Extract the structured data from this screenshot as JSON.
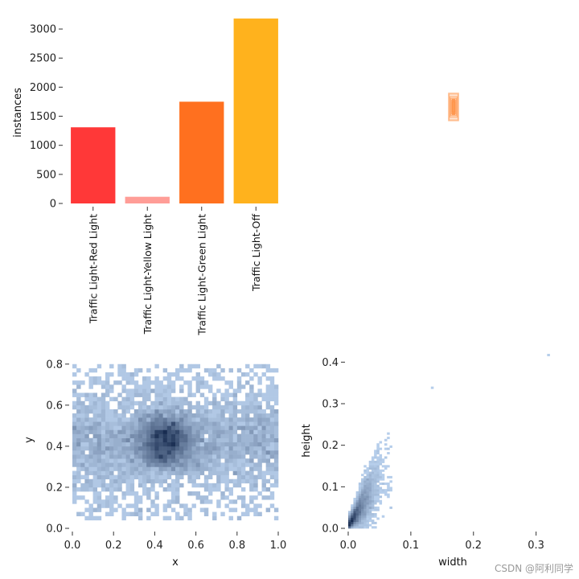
{
  "watermark": "CSDN @阿利同学",
  "chart_data": [
    {
      "type": "bar",
      "ylabel": "instances",
      "ylim": [
        0,
        3250
      ],
      "yticks": [
        0,
        500,
        1000,
        1500,
        2000,
        2500,
        3000
      ],
      "categories": [
        "Traffic Light-Red Light",
        "Traffic Light-Yellow Light",
        "Traffic Light-Green Light",
        "Traffic Light-Off"
      ],
      "values": [
        1310,
        115,
        1750,
        3180
      ],
      "colors": [
        "#ff3838",
        "#ff9d97",
        "#ff701f",
        "#ffb21d"
      ],
      "grid": false
    },
    {
      "type": "scatter",
      "description_kind": "overlaid-boxes",
      "boxes": [
        {
          "w": 0.012,
          "h": 0.075
        },
        {
          "w": 0.01,
          "h": 0.06
        },
        {
          "w": 0.014,
          "h": 0.08
        },
        {
          "w": 0.008,
          "h": 0.05
        },
        {
          "w": 0.006,
          "h": 0.04
        },
        {
          "w": 0.004,
          "h": 0.03
        }
      ],
      "box_color": "#ff8c3a"
    },
    {
      "type": "heatmap",
      "xlabel": "x",
      "ylabel": "y",
      "xlim": [
        0.0,
        1.0
      ],
      "ylim": [
        0.0,
        0.85
      ],
      "xticks": [
        "0.0",
        "0.2",
        "0.4",
        "0.6",
        "0.8",
        "1.0"
      ],
      "yticks": [
        "0.0",
        "0.2",
        "0.4",
        "0.6",
        "0.8"
      ],
      "hotspot": {
        "x": 0.45,
        "y": 0.43
      },
      "color": "#1f77d4"
    },
    {
      "type": "heatmap",
      "xlabel": "width",
      "ylabel": "height",
      "xlim": [
        0.0,
        0.33
      ],
      "ylim": [
        0.0,
        0.42
      ],
      "xticks": [
        "0.0",
        "0.1",
        "0.2",
        "0.3"
      ],
      "yticks": [
        "0.0",
        "0.1",
        "0.2",
        "0.3",
        "0.4"
      ],
      "hotspot": {
        "x": 0.005,
        "y": 0.03
      },
      "outliers": [
        {
          "x": 0.135,
          "y": 0.34
        },
        {
          "x": 0.32,
          "y": 0.42
        }
      ],
      "color": "#1f77d4"
    }
  ]
}
